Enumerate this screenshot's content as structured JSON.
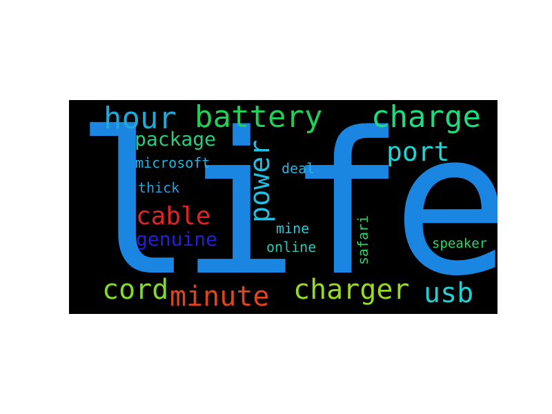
{
  "wordcloud": {
    "background": "#000000",
    "words": {
      "life": {
        "text": "life",
        "color": "#1b86e2"
      },
      "hour": {
        "text": "hour",
        "color": "#1ea9d9"
      },
      "battery": {
        "text": "battery",
        "color": "#22d056"
      },
      "charge": {
        "text": "charge",
        "color": "#1ddc7e"
      },
      "package": {
        "text": "package",
        "color": "#26d07c"
      },
      "power": {
        "text": "power",
        "color": "#27bde0"
      },
      "port": {
        "text": "port",
        "color": "#23d3d3"
      },
      "microsoft": {
        "text": "microsoft",
        "color": "#24b4e0"
      },
      "deal": {
        "text": "deal",
        "color": "#2cb2de"
      },
      "thick": {
        "text": "thick",
        "color": "#2a9fd8"
      },
      "cable": {
        "text": "cable",
        "color": "#e02424"
      },
      "genuine": {
        "text": "genuine",
        "color": "#2820d0"
      },
      "mine": {
        "text": "mine",
        "color": "#2ac9d6"
      },
      "online": {
        "text": "online",
        "color": "#2cc7b0"
      },
      "safari": {
        "text": "safari",
        "color": "#2ed06b"
      },
      "speaker": {
        "text": "speaker",
        "color": "#2ad866"
      },
      "cord": {
        "text": "cord",
        "color": "#7fdc2a"
      },
      "minute": {
        "text": "minute",
        "color": "#e0441e"
      },
      "charger": {
        "text": "charger",
        "color": "#95dc20"
      },
      "usb": {
        "text": "usb",
        "color": "#24cfd3"
      }
    }
  }
}
